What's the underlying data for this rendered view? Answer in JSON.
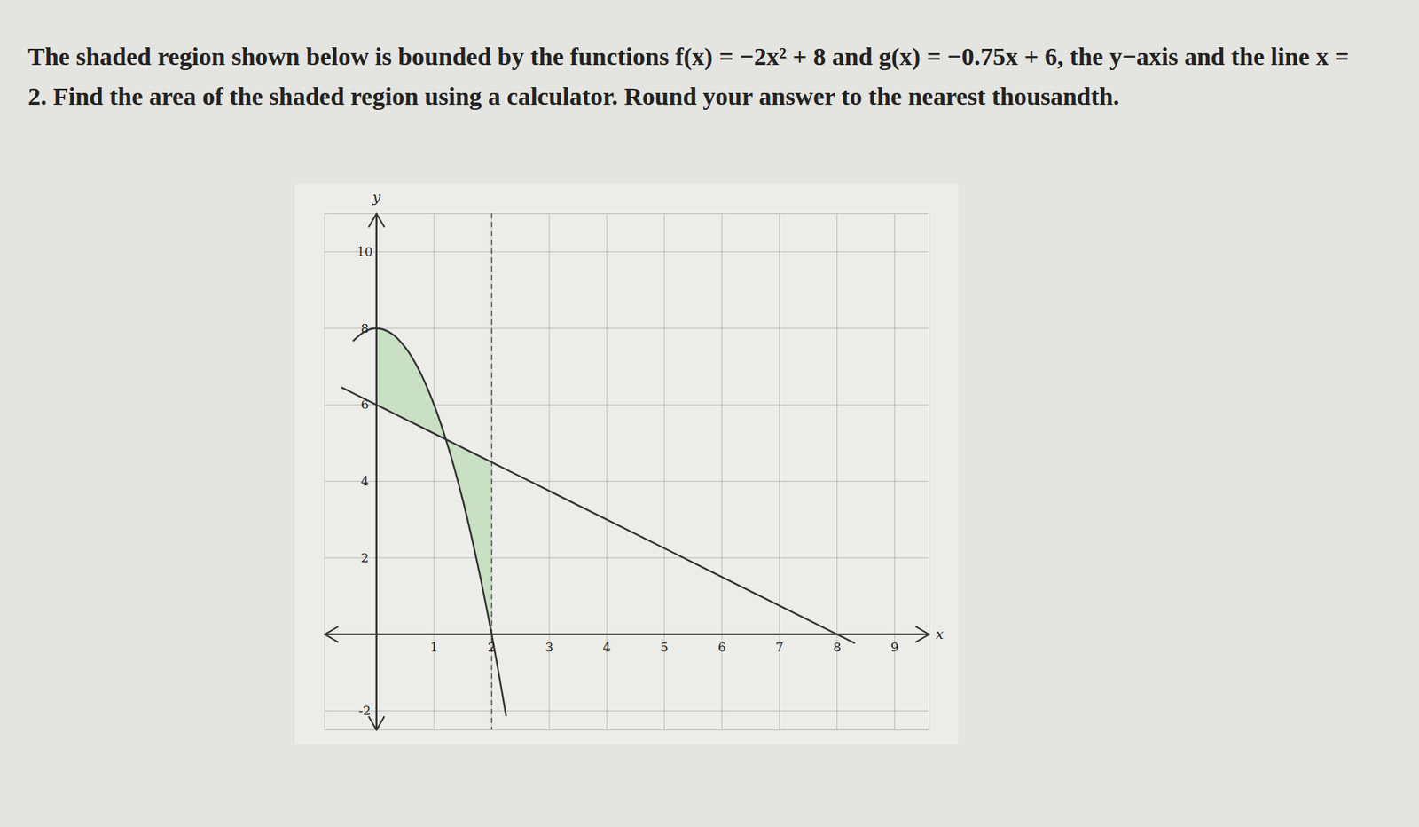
{
  "chart_data": {
    "type": "line",
    "title": "The shaded region shown below is bounded by the functions f(x) = −2x² + 8 and g(x) = −0.75x + 6, the y−axis and the line x = 2. Find the area of the shaded region using a calculator. Round your answer to the nearest thousandth.",
    "x_label": "x",
    "y_label": "y",
    "xlim": [
      -0.9,
      9.6
    ],
    "ylim": [
      -2.5,
      11
    ],
    "xticks": [
      1,
      2,
      3,
      4,
      5,
      6,
      7,
      8,
      9
    ],
    "yticks": [
      -2,
      2,
      4,
      6,
      8,
      10
    ],
    "grid": true,
    "series": [
      {
        "name": "f(x)",
        "color": "#333333",
        "x": [
          -0.4,
          -0.2,
          0,
          0.25,
          0.5,
          0.75,
          1,
          1.25,
          1.5,
          1.75,
          2,
          2.25
        ],
        "values": [
          7.68,
          7.92,
          8,
          7.875,
          7.5,
          6.875,
          6,
          4.875,
          3.5,
          1.875,
          0,
          -2.125
        ]
      },
      {
        "name": "g(x)",
        "color": "#333333",
        "x": [
          -0.6,
          -0.4,
          -0.2,
          0,
          0.25,
          0.5,
          0.75,
          1,
          1.25,
          1.5,
          1.75,
          2,
          2.25,
          8.3
        ],
        "values": [
          6.45,
          6.3,
          6.15,
          6,
          5.8125,
          5.625,
          5.4375,
          5.25,
          5.0625,
          4.875,
          4.6875,
          4.5,
          4.3125,
          -0.225
        ]
      }
    ],
    "region": {
      "from": 0,
      "to": 2,
      "color": "#c6dfc0"
    },
    "dashed_line_x": 2
  }
}
